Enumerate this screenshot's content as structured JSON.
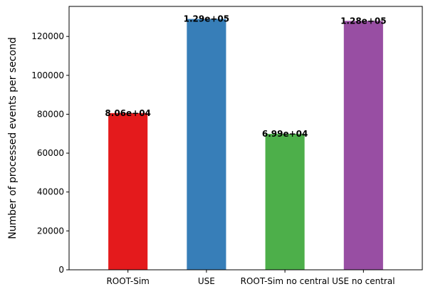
{
  "chart_data": {
    "type": "bar",
    "categories": [
      "ROOT-Sim",
      "USE",
      "ROOT-Sim no central",
      "USE no central"
    ],
    "values": [
      80600,
      129000,
      69900,
      128000
    ],
    "data_labels": [
      "8.06e+04",
      "1.29e+05",
      "6.99e+04",
      "1.28e+05"
    ],
    "bar_colors": [
      "#e41a1c",
      "#377eb8",
      "#4daf4a",
      "#984ea3"
    ],
    "title": "",
    "xlabel": "",
    "ylabel": "Number of processed events per second",
    "ylim": [
      0,
      135450
    ],
    "yticks": [
      0,
      20000,
      40000,
      60000,
      80000,
      100000,
      120000
    ],
    "grid": false,
    "legend": "none"
  }
}
